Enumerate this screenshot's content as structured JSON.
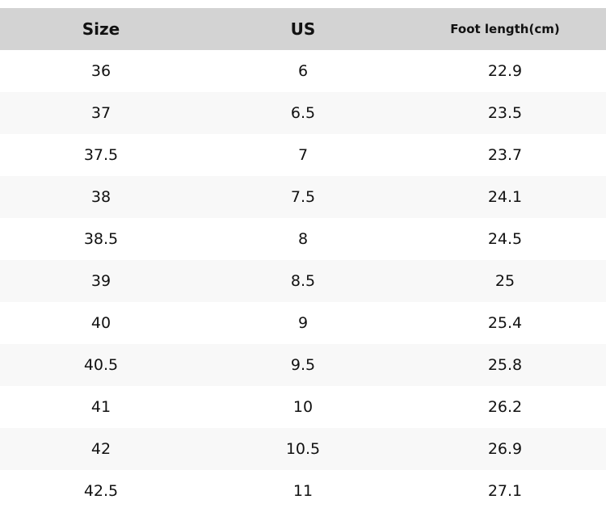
{
  "table": {
    "header": [
      "Size",
      "US",
      "Foot length(cm)"
    ],
    "rows": [
      [
        "36",
        "6",
        "22.9"
      ],
      [
        "37",
        "6.5",
        "23.5"
      ],
      [
        "37.5",
        "7",
        "23.7"
      ],
      [
        "38",
        "7.5",
        "24.1"
      ],
      [
        "38.5",
        "8",
        "24.5"
      ],
      [
        "39",
        "8.5",
        "25"
      ],
      [
        "40",
        "9",
        "25.4"
      ],
      [
        "40.5",
        "9.5",
        "25.8"
      ],
      [
        "41",
        "10",
        "26.2"
      ],
      [
        "42",
        "10.5",
        "26.9"
      ],
      [
        "42.5",
        "11",
        "27.1"
      ]
    ]
  }
}
